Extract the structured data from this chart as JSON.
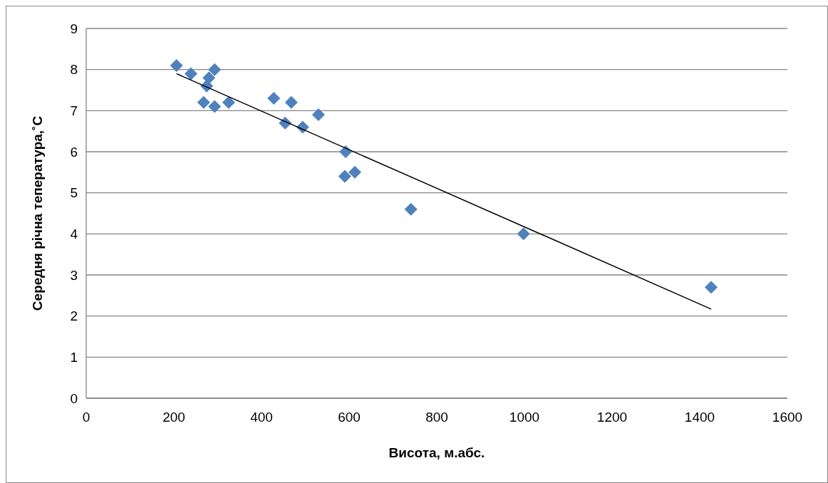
{
  "chart_data": {
    "type": "scatter",
    "xlabel": "Висота, м.абс.",
    "ylabel": "Середня річна тепература,˚С",
    "xlim": [
      0,
      1600
    ],
    "xticks": [
      0,
      200,
      400,
      600,
      800,
      1000,
      1200,
      1400,
      1600
    ],
    "ylim": [
      0,
      9
    ],
    "yticks": [
      0,
      1,
      2,
      3,
      4,
      5,
      6,
      7,
      8,
      9
    ],
    "grid": "y",
    "marker": "diamond",
    "series": [
      {
        "color": "#4f81bd",
        "x": [
          206,
          239,
          275,
          280,
          293,
          268,
          293,
          325,
          428,
          468,
          454,
          494,
          530,
          592,
          590,
          613,
          741,
          998,
          1426
        ],
        "values": [
          8.1,
          7.9,
          7.6,
          7.8,
          8.0,
          7.2,
          7.1,
          7.2,
          7.3,
          7.2,
          6.7,
          6.6,
          6.9,
          6.0,
          5.4,
          5.5,
          4.6,
          4.0,
          2.7
        ]
      },
      {
        "type": "line",
        "color": "#000000",
        "x": [
          206,
          1426
        ],
        "values": [
          7.9,
          2.17
        ],
        "marker": "none",
        "line_style": "solid"
      }
    ]
  }
}
